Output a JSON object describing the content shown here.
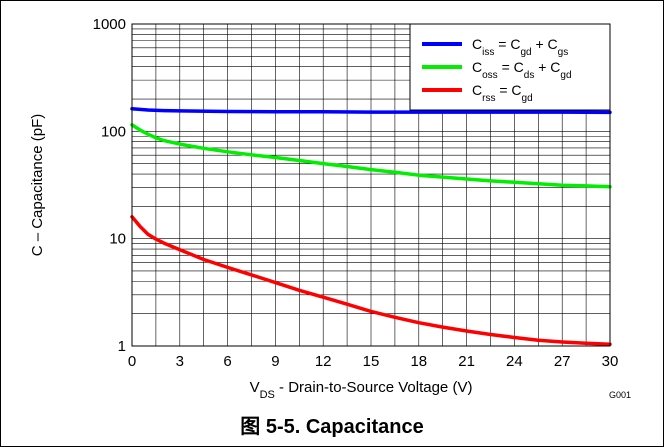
{
  "caption": "图 5-5. Capacitance",
  "code": "G001",
  "chart_data": {
    "type": "line",
    "title": "Capacitance",
    "xlabel_parts": [
      {
        "t": "V",
        "sub": false
      },
      {
        "t": "DS",
        "sub": true
      },
      {
        "t": " - Drain-to-Source Voltage (V)",
        "sub": false
      }
    ],
    "ylabel": "C – Capacitance  (pF)",
    "x_ticks": [
      0,
      3,
      6,
      9,
      12,
      15,
      18,
      21,
      24,
      27,
      30
    ],
    "y_ticks": [
      1,
      10,
      100,
      1000
    ],
    "xlim": [
      0,
      30
    ],
    "ylim": [
      1,
      1000
    ],
    "y_scale": "log",
    "grid": true,
    "legend_position": "top-right",
    "series": [
      {
        "key": "ciss",
        "color": "#0000ff",
        "label": [
          {
            "t": "C",
            "sub": false
          },
          {
            "t": "iss",
            "sub": true
          },
          {
            "t": " = C",
            "sub": false
          },
          {
            "t": "gd",
            "sub": true
          },
          {
            "t": " + C",
            "sub": false
          },
          {
            "t": "gs",
            "sub": true
          }
        ],
        "x": [
          0,
          1,
          2,
          3,
          6,
          9,
          12,
          15,
          18,
          21,
          24,
          27,
          30
        ],
        "y": [
          162,
          158,
          156,
          155,
          153,
          152,
          152,
          151,
          151,
          151,
          151,
          151,
          150
        ]
      },
      {
        "key": "coss",
        "color": "#00ee00",
        "label": [
          {
            "t": "C",
            "sub": false
          },
          {
            "t": "oss",
            "sub": true
          },
          {
            "t": " = C",
            "sub": false
          },
          {
            "t": "ds",
            "sub": true
          },
          {
            "t": " + C",
            "sub": false
          },
          {
            "t": "gd",
            "sub": true
          }
        ],
        "x": [
          0,
          0.5,
          1,
          1.5,
          2,
          3,
          4.5,
          6,
          7.5,
          9,
          10.5,
          12,
          13.5,
          15,
          16.5,
          18,
          19.5,
          21,
          22.5,
          24,
          25.5,
          27,
          28.5,
          30
        ],
        "y": [
          115,
          103,
          94,
          87,
          82,
          76,
          69.5,
          64.5,
          60.5,
          57,
          53.5,
          50,
          47,
          44,
          41.5,
          39,
          37.5,
          36,
          34.5,
          33.5,
          32.5,
          31.5,
          31,
          30.5
        ]
      },
      {
        "key": "crss",
        "color": "#ff0000",
        "label": [
          {
            "t": "C",
            "sub": false
          },
          {
            "t": "rss",
            "sub": true
          },
          {
            "t": " =  C",
            "sub": false
          },
          {
            "t": "gd",
            "sub": true
          }
        ],
        "x": [
          0,
          0.5,
          1,
          1.5,
          2,
          3,
          4.5,
          6,
          7.5,
          9,
          10.5,
          12,
          13.5,
          15,
          16.5,
          18,
          19.5,
          21,
          22.5,
          24,
          25.5,
          27,
          28.5,
          30
        ],
        "y": [
          16,
          13,
          11,
          9.9,
          9.1,
          7.9,
          6.4,
          5.4,
          4.6,
          3.9,
          3.3,
          2.85,
          2.45,
          2.1,
          1.85,
          1.65,
          1.5,
          1.38,
          1.28,
          1.2,
          1.13,
          1.09,
          1.06,
          1.04
        ]
      }
    ]
  }
}
